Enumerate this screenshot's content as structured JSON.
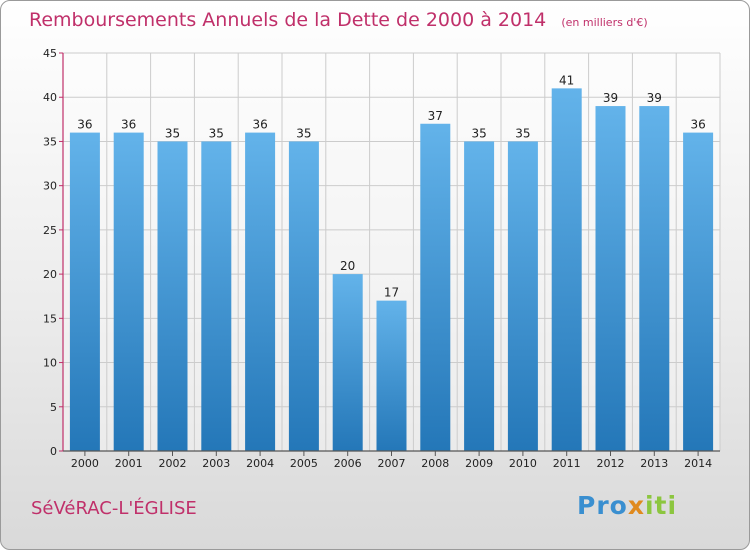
{
  "chart_data": {
    "type": "bar",
    "title": "Remboursements Annuels de la Dette de 2000 à 2014",
    "subtitle": "(en milliers d'€)",
    "categories": [
      "2000",
      "2001",
      "2002",
      "2003",
      "2004",
      "2005",
      "2006",
      "2007",
      "2008",
      "2009",
      "2010",
      "2011",
      "2012",
      "2013",
      "2014"
    ],
    "values": [
      36,
      36,
      35,
      35,
      36,
      35,
      20,
      17,
      37,
      35,
      35,
      41,
      39,
      39,
      36
    ],
    "ylim": [
      0,
      45
    ],
    "yticks": [
      0,
      5,
      10,
      15,
      20,
      25,
      30,
      35,
      40,
      45
    ],
    "grid": true,
    "xlabel": "",
    "ylabel": ""
  },
  "place": "SéVéRAC-L'ÉGLISE",
  "logo": {
    "text": "Proxiti"
  },
  "colors": {
    "bar_light": "#63b3ea",
    "bar_dark": "#2477b8",
    "title": "#c0306a",
    "grid": "#cccccc",
    "axis": "#c0306a"
  }
}
